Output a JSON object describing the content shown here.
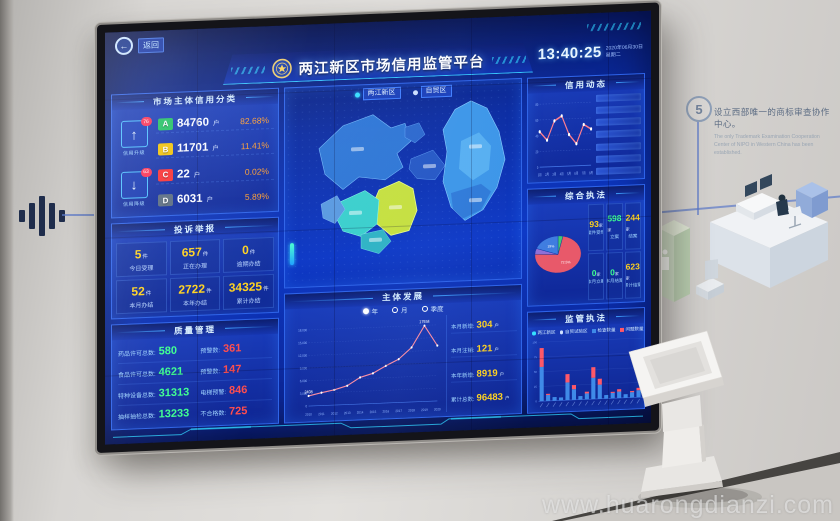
{
  "colors": {
    "accent_cyan": "#35e0ff",
    "panel_border": "#2e63e8",
    "value_yellow": "#ffd21f",
    "value_green": "#3dff90",
    "value_red": "#ff4d4d",
    "pct_orange": "#ff9d2e",
    "line_pink": "#ff8da0",
    "bar_blue": "#3f8ae8",
    "bar_red": "#ff5868",
    "grade_a": "#1fc35c",
    "grade_b": "#f5c400",
    "grade_c": "#ff2d2d",
    "grade_d": "#5a6b7e",
    "wall_line": "#5b79c9"
  },
  "icons": {
    "back_arrow": "←",
    "up_arrow": "↑",
    "down_arrow": "↓"
  },
  "wall": {
    "milestone_number": "5",
    "milestone_zh": "设立西部唯一的商标审查协作中心。",
    "milestone_en": "The only Trademark Examination Cooperation Center of NIPO in Western China has been established.",
    "watermark": "www.huarongdianzi.com"
  },
  "screen": {
    "back_label": "返回",
    "title": "两江新区市场信用监管平台",
    "clock": {
      "time": "13:40:25",
      "date": "2020年06月30日",
      "weekday": "星期二"
    },
    "map": {
      "tabs": [
        {
          "label": "两江新区",
          "active": true
        },
        {
          "label": "自贸区",
          "active": false
        }
      ]
    },
    "credit": {
      "title": "市场主体信用分类",
      "up": {
        "count": "76",
        "label": "信用升级"
      },
      "down": {
        "count": "63",
        "label": "信用降级"
      },
      "rows": [
        {
          "grade": "A",
          "count": "84760",
          "unit": "户",
          "pct": "82.68%"
        },
        {
          "grade": "B",
          "count": "11701",
          "unit": "户",
          "pct": "11.41%"
        },
        {
          "grade": "C",
          "count": "22",
          "unit": "户",
          "pct": "0.02%"
        },
        {
          "grade": "D",
          "count": "6031",
          "unit": "户",
          "pct": "5.89%"
        }
      ]
    },
    "complaints": {
      "title": "投诉举报",
      "items": [
        {
          "value": "5",
          "unit": "件",
          "label": "今日受理"
        },
        {
          "value": "657",
          "unit": "件",
          "label": "正在办理"
        },
        {
          "value": "0",
          "unit": "件",
          "label": "逾期办结"
        },
        {
          "value": "52",
          "unit": "件",
          "label": "本月办结"
        },
        {
          "value": "2722",
          "unit": "件",
          "label": "本年办结"
        },
        {
          "value": "34325",
          "unit": "件",
          "label": "累计办结"
        }
      ]
    },
    "quality": {
      "title": "质量管理",
      "rows": [
        {
          "left_label": "药品许可总数:",
          "left_value": "580",
          "right_label": "预警数:",
          "right_value": "361"
        },
        {
          "left_label": "食品许可总数:",
          "left_value": "4621",
          "right_label": "预警数:",
          "right_value": "147"
        },
        {
          "left_label": "特种设备总数:",
          "left_value": "31313",
          "right_label": "电梯预警:",
          "right_value": "846"
        },
        {
          "left_label": "抽样抽检总数:",
          "left_value": "13233",
          "right_label": "不合格数:",
          "right_value": "725"
        }
      ]
    },
    "development": {
      "title": "主体发展",
      "legend": [
        {
          "label": "年",
          "active": true
        },
        {
          "label": "月",
          "active": false
        },
        {
          "label": "季度",
          "active": false
        }
      ],
      "stats": [
        {
          "label": "本月新增:",
          "value": "304",
          "unit": "户"
        },
        {
          "label": "本月注销:",
          "value": "121",
          "unit": "户"
        },
        {
          "label": "本年新增:",
          "value": "8919",
          "unit": "户"
        },
        {
          "label": "累计总数:",
          "value": "96483",
          "unit": "户"
        }
      ]
    },
    "news": {
      "title": "信用动态",
      "item_count": 7
    },
    "enforcement": {
      "title": "综合执法",
      "stats": [
        {
          "value": "93",
          "unit": "家",
          "label": "案件受理",
          "color": "#ffd21f"
        },
        {
          "value": "598",
          "unit": "家",
          "label": "立案",
          "color": "#3dff90"
        },
        {
          "value": "244",
          "unit": "家",
          "label": "结案",
          "color": "#ffd21f"
        },
        {
          "value": "0",
          "unit": "家",
          "label": "本月立案",
          "color": "#3dff90"
        },
        {
          "value": "0",
          "unit": "家",
          "label": "本月结案",
          "color": "#3dff90"
        },
        {
          "value": "623",
          "unit": "家",
          "label": "累计结案",
          "color": "#ffd21f"
        }
      ]
    },
    "supervision": {
      "title": "监管执法",
      "options": [
        {
          "label": "两江新区",
          "active": true
        },
        {
          "label": "自贸试验区",
          "active": false
        }
      ],
      "legend": [
        {
          "label": "检查数量",
          "color": "#3f8ae8"
        },
        {
          "label": "问题数量",
          "color": "#ff5868"
        }
      ]
    }
  },
  "chart_data": [
    {
      "id": "development",
      "type": "line",
      "title": "主体发展",
      "x": [
        "2010",
        "2011",
        "2012",
        "2013",
        "2014",
        "2015",
        "2016",
        "2017",
        "2018",
        "2019",
        "2020"
      ],
      "values": [
        2408,
        3050,
        3600,
        4450,
        6300,
        7150,
        8800,
        10250,
        12900,
        17934,
        13100
      ],
      "point_labels": {
        "0": "2408",
        "9": "17934"
      },
      "ylim": [
        0,
        18000
      ],
      "yticks": [
        0,
        3000,
        6000,
        9000,
        12000,
        15000,
        18000
      ],
      "line_color": "#ff8da0",
      "xlabel": "",
      "ylabel": ""
    },
    {
      "id": "news_trend",
      "type": "line",
      "title": "信用动态",
      "x": [
        "1月",
        "2月",
        "3月",
        "4月",
        "5月",
        "6月",
        "7月",
        "8月"
      ],
      "values": [
        45,
        34,
        58,
        64,
        40,
        28,
        52,
        46
      ],
      "ylim": [
        0,
        80
      ],
      "yticks": [
        0,
        20,
        40,
        60,
        80
      ],
      "line_color": "#ff7d8e",
      "xlabel": "",
      "ylabel": ""
    },
    {
      "id": "enforcement_pie",
      "type": "pie",
      "title": "综合执法",
      "slices": [
        {
          "label": "",
          "value": 3.5,
          "color": "#3fc878"
        },
        {
          "label": "72.5%",
          "value": 72.5,
          "color": "#e8596a"
        },
        {
          "label": "",
          "value": 5.0,
          "color": "#8e6fd8"
        },
        {
          "label": "19%",
          "value": 19.0,
          "color": "#3f7de0"
        }
      ]
    },
    {
      "id": "supervision_bars",
      "type": "stacked-bar",
      "title": "监管执法",
      "categories": [
        "",
        "",
        "",
        "",
        "",
        "",
        "",
        "",
        "",
        "",
        "",
        "",
        "",
        "",
        "",
        ""
      ],
      "series": [
        {
          "name": "检查数量",
          "color": "#3f8ae8",
          "values": [
            58,
            10,
            6,
            5,
            30,
            18,
            6,
            10,
            36,
            24,
            6,
            9,
            11,
            6,
            9,
            12
          ]
        },
        {
          "name": "问题数量",
          "color": "#ff5868",
          "values": [
            32,
            2,
            0,
            0,
            14,
            7,
            0,
            3,
            18,
            10,
            0,
            2,
            4,
            0,
            2,
            4
          ]
        }
      ],
      "ylim": [
        0,
        100
      ],
      "yticks": [
        0,
        25,
        50,
        75,
        100
      ]
    }
  ]
}
